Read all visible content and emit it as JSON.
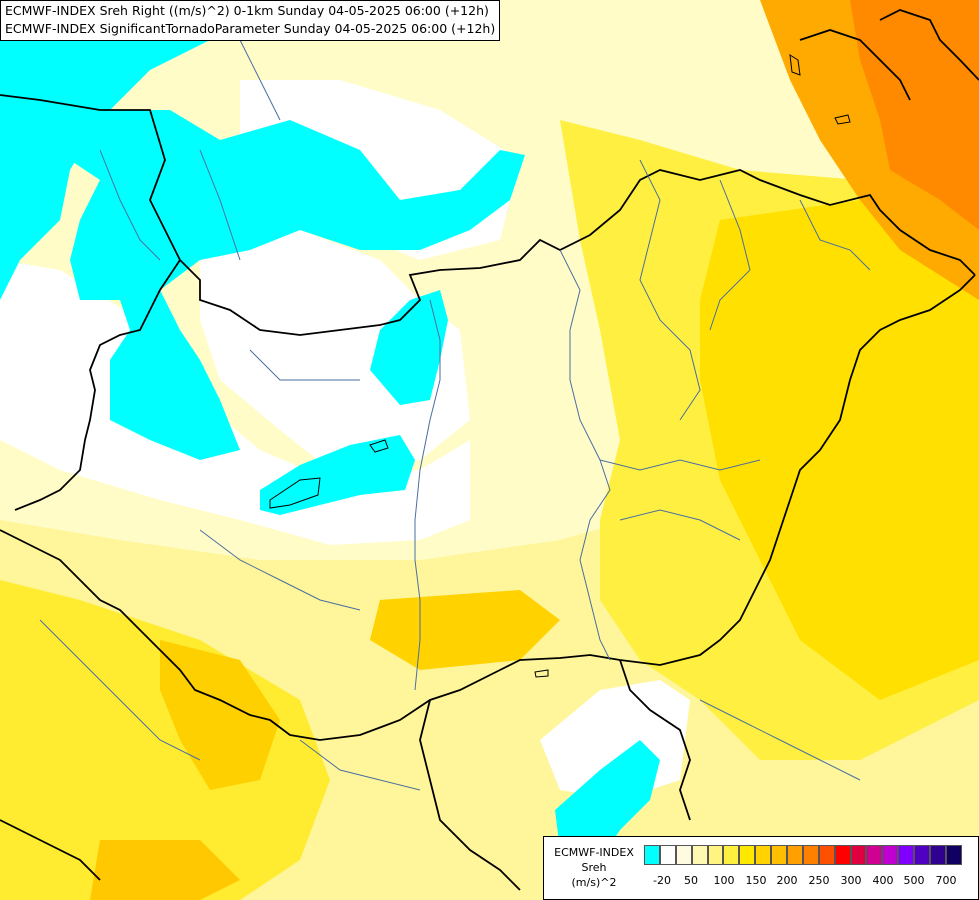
{
  "header": {
    "line1": "ECMWF-INDEX Sreh Right ((m/s)^2) 0-1km Sunday 04-05-2025 06:00 (+12h)",
    "line2": "ECMWF-INDEX SignificantTornadoParameter Sunday 04-05-2025 06:00 (+12h)"
  },
  "legend": {
    "title_lines": [
      "ECMWF-INDEX",
      "Sreh",
      "(m/s)^2"
    ],
    "colors": [
      "#00ffff",
      "#ffffff",
      "#fffbe0",
      "#fff8b0",
      "#fff480",
      "#fff040",
      "#ffe800",
      "#ffd200",
      "#ffbe00",
      "#ffa000",
      "#ff8000",
      "#ff5000",
      "#ff0000",
      "#e00040",
      "#d00090",
      "#c000d0",
      "#8000ff",
      "#5000c0",
      "#300090",
      "#100060"
    ],
    "ticks": [
      "-20",
      "50",
      "100",
      "150",
      "200",
      "250",
      "300",
      "400",
      "500",
      "700"
    ]
  },
  "map": {
    "description_colors": {
      "cyan": "#00ffff",
      "white": "#ffffff",
      "pale": "#fffcc8",
      "light_yellow": "#fff59a",
      "yellow": "#ffef40",
      "gold": "#ffd700",
      "orange": "#ffa500",
      "dark_orange": "#ff7f00"
    }
  }
}
